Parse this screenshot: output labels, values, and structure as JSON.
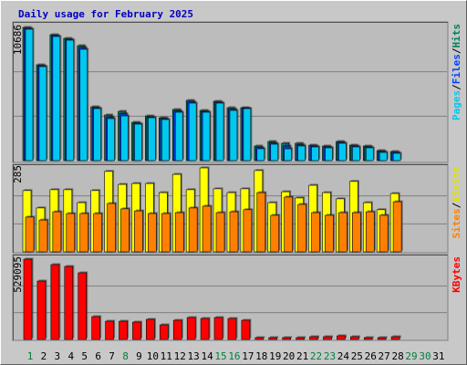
{
  "chart_data": {
    "type": "bar",
    "title": "Daily usage for February 2025",
    "categories": [
      "1",
      "2",
      "3",
      "4",
      "5",
      "6",
      "7",
      "8",
      "9",
      "10",
      "11",
      "12",
      "13",
      "14",
      "15",
      "16",
      "17",
      "18",
      "19",
      "20",
      "21",
      "22",
      "23",
      "24",
      "25",
      "26",
      "27",
      "28",
      "29",
      "30",
      "31"
    ],
    "category_colors": [
      "#008040",
      "#000000",
      "#000000",
      "#000000",
      "#000000",
      "#000000",
      "#000000",
      "#008040",
      "#000000",
      "#000000",
      "#000000",
      "#000000",
      "#000000",
      "#000000",
      "#008040",
      "#008040",
      "#000000",
      "#000000",
      "#000000",
      "#000000",
      "#000000",
      "#008040",
      "#008040",
      "#000000",
      "#000000",
      "#000000",
      "#000000",
      "#000000",
      "#008040",
      "#008040",
      "#000000"
    ],
    "legend_separator": "/",
    "panels": [
      {
        "ylim": [
          0,
          10686
        ],
        "yticks": [
          10686
        ],
        "grid": 3,
        "series": [
          {
            "name": "Hits",
            "color": "#00805c",
            "values": [
              10686,
              7685,
              10100,
              9808,
              9222,
              4318,
              3660,
              3952,
              3074,
              3586,
              3440,
              4099,
              4831,
              4026,
              4757,
              4245,
              4245,
              1171,
              1537,
              1391,
              1391,
              1244,
              1171,
              1537,
              1244,
              1171,
              805,
              732,
              null,
              null,
              null
            ]
          },
          {
            "name": "Files",
            "color": "#0040ff",
            "values": [
              10610,
              7610,
              10030,
              9730,
              9080,
              4240,
              3510,
              3770,
              3000,
              3510,
              3370,
              3990,
              4720,
              3950,
              4680,
              4130,
              4210,
              1060,
              1420,
              1170,
              1280,
              1170,
              1100,
              1460,
              1170,
              1100,
              730,
              660,
              null,
              null,
              null
            ]
          },
          {
            "name": "Pages",
            "color": "#00c8f0",
            "values": [
              10539,
              7539,
              9954,
              9661,
              8929,
              4172,
              3367,
              3586,
              2928,
              3440,
              3294,
              3879,
              4611,
              3879,
              4611,
              4025,
              4172,
              951,
              1317,
              951,
              1171,
              1098,
              1025,
              1391,
              1098,
              1025,
              659,
              586,
              null,
              null,
              null
            ]
          }
        ]
      },
      {
        "ylim": [
          0,
          285
        ],
        "yticks": [
          285
        ],
        "grid": 3,
        "series": [
          {
            "name": "Visits",
            "color": "#ffff00",
            "values": [
              208,
              149,
              211,
              211,
              167,
              208,
              273,
              229,
              232,
              232,
              201,
              263,
              211,
              285,
              214,
              201,
              214,
              276,
              167,
              204,
              183,
              226,
              201,
              180,
              239,
              167,
              143,
              198,
              null,
              null,
              null
            ]
          },
          {
            "name": "Sites",
            "color": "#ff8000",
            "values": [
              118,
              108,
              136,
              130,
              130,
              130,
              164,
              146,
              139,
              130,
              130,
              133,
              149,
              155,
              133,
              136,
              143,
              201,
              124,
              186,
              161,
              133,
              124,
              133,
              133,
              136,
              124,
              170,
              null,
              null,
              null
            ]
          }
        ]
      },
      {
        "ylim": [
          0,
          529095
        ],
        "yticks": [
          529095
        ],
        "grid": 3,
        "series": [
          {
            "name": "KBytes",
            "color": "#ff0000",
            "values": [
              529095,
              384794,
              493016,
              480992,
              438905,
              150310,
              120248,
              120248,
              114236,
              132273,
              96198,
              126260,
              144298,
              138285,
              144298,
              138285,
              126260,
              12025,
              12025,
              12025,
              12025,
              18037,
              18037,
              24049,
              18037,
              12025,
              12025,
              18037,
              null,
              null,
              null
            ]
          }
        ]
      }
    ]
  }
}
